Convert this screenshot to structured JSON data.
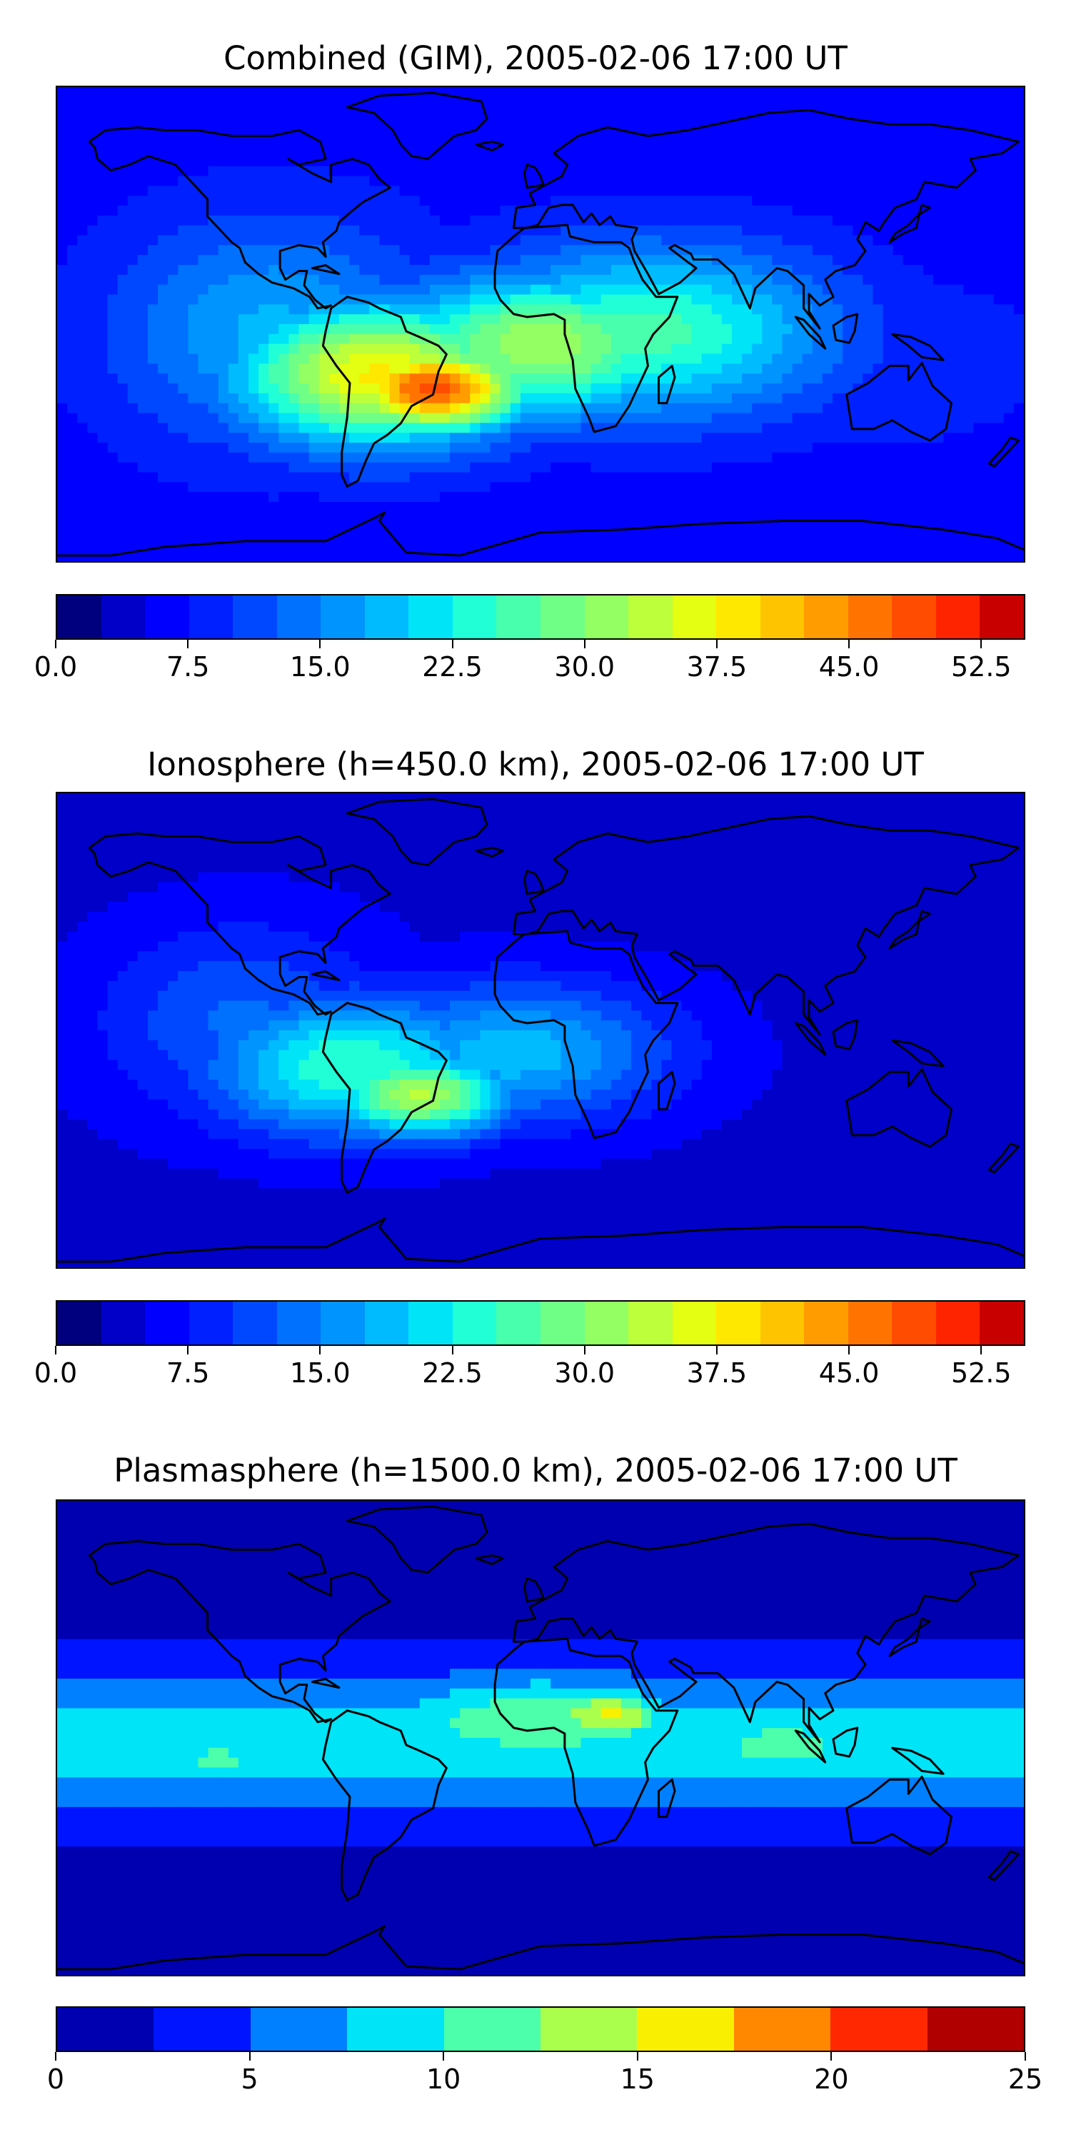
{
  "panels": [
    {
      "title": "Combined (GIM), 2005-02-06 17:00 UT",
      "colorbar": {
        "vmin": 0.0,
        "vmax": 55.0,
        "levels": 22,
        "tick_labels": [
          "0.0",
          "7.5",
          "15.0",
          "22.5",
          "30.0",
          "37.5",
          "45.0",
          "52.5"
        ],
        "tick_values": [
          0.0,
          7.5,
          15.0,
          22.5,
          30.0,
          37.5,
          45.0,
          52.5
        ]
      },
      "field": {
        "background_level": 6,
        "blobs": [
          {
            "lon": -40,
            "lat": -20,
            "value": 49,
            "rx": 35,
            "ry": 15
          },
          {
            "lon": -60,
            "lat": -15,
            "value": 38,
            "rx": 55,
            "ry": 25
          },
          {
            "lon": 0,
            "lat": -5,
            "value": 32,
            "rx": 60,
            "ry": 25
          },
          {
            "lon": 40,
            "lat": 0,
            "value": 26,
            "rx": 70,
            "ry": 30
          },
          {
            "lon": -100,
            "lat": 0,
            "value": 18,
            "rx": 60,
            "ry": 40
          },
          {
            "lon": 120,
            "lat": -10,
            "value": 10,
            "rx": 70,
            "ry": 30
          }
        ]
      }
    },
    {
      "title": "Ionosphere  (h=450.0 km), 2005-02-06 17:00 UT",
      "colorbar": {
        "vmin": 0.0,
        "vmax": 55.0,
        "levels": 22,
        "tick_labels": [
          "0.0",
          "7.5",
          "15.0",
          "22.5",
          "30.0",
          "37.5",
          "45.0",
          "52.5"
        ],
        "tick_values": [
          0.0,
          7.5,
          15.0,
          22.5,
          30.0,
          37.5,
          45.0,
          52.5
        ]
      },
      "field": {
        "background_level": 4,
        "blobs": [
          {
            "lon": -45,
            "lat": -20,
            "value": 33,
            "rx": 35,
            "ry": 15
          },
          {
            "lon": -70,
            "lat": -10,
            "value": 25,
            "rx": 55,
            "ry": 25
          },
          {
            "lon": -10,
            "lat": -5,
            "value": 19,
            "rx": 60,
            "ry": 25
          },
          {
            "lon": -110,
            "lat": 5,
            "value": 13,
            "rx": 55,
            "ry": 35
          },
          {
            "lon": 80,
            "lat": 40,
            "value": 2,
            "rx": 60,
            "ry": 15
          }
        ]
      }
    },
    {
      "title": "Plasmasphere (h=1500.0 km), 2005-02-06 17:00 UT",
      "colorbar": {
        "vmin": 0,
        "vmax": 25,
        "levels": 10,
        "tick_labels": [
          "0",
          "5",
          "10",
          "15",
          "20",
          "25"
        ],
        "tick_values": [
          0,
          5,
          10,
          15,
          20,
          25
        ]
      },
      "field": {
        "background_level": 1.5,
        "band": {
          "lat": 0,
          "value": 9,
          "ry": 25
        },
        "blobs": [
          {
            "lon": 25,
            "lat": 10,
            "value": 15.5,
            "rx": 25,
            "ry": 10
          },
          {
            "lon": 0,
            "lat": 8,
            "value": 12,
            "rx": 70,
            "ry": 18
          },
          {
            "lon": 90,
            "lat": 0,
            "value": 11,
            "rx": 50,
            "ry": 14
          },
          {
            "lon": -120,
            "lat": -5,
            "value": 10.5,
            "rx": 30,
            "ry": 12
          }
        ]
      }
    }
  ],
  "colors": {
    "jet22": [
      "#00007f",
      "#0000c8",
      "#0000ff",
      "#0020ff",
      "#0048ff",
      "#0070ff",
      "#0094ff",
      "#00bcff",
      "#00e4f8",
      "#20ffd6",
      "#48ffae",
      "#70ff86",
      "#94ff62",
      "#bcff3a",
      "#e4ff12",
      "#ffe800",
      "#ffc400",
      "#ff9c00",
      "#ff7400",
      "#ff4c00",
      "#ff2400",
      "#c80000",
      "#7f0000"
    ],
    "jet10": [
      "#0000b0",
      "#0014ff",
      "#0080ff",
      "#00e4f8",
      "#4cffaa",
      "#aaff4c",
      "#f8f000",
      "#ff8800",
      "#ff2800",
      "#b00000"
    ],
    "land_outline": "#000000"
  }
}
